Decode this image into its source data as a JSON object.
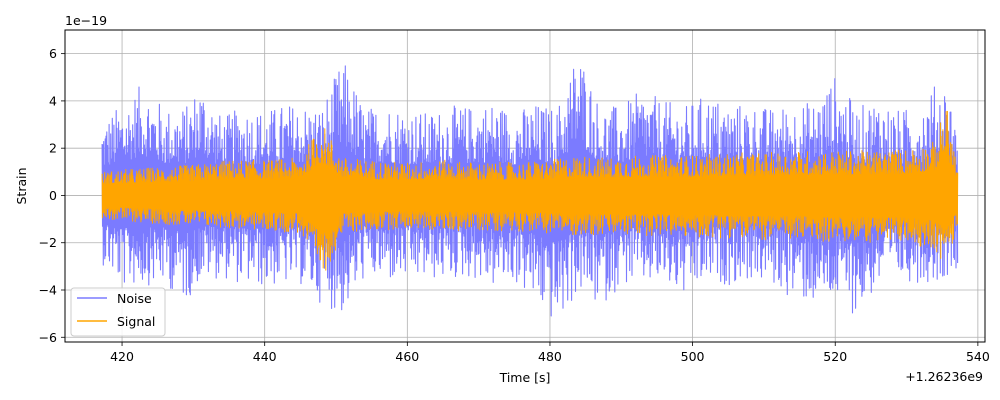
{
  "chart_data": {
    "type": "line",
    "xlabel": "Time [s]",
    "ylabel": "Strain",
    "x_offset_label": "+1.26236e9",
    "y_scale_label": "1e−19",
    "xlim": [
      412,
      541
    ],
    "ylim": [
      -6.2,
      7.0
    ],
    "x_range_data": [
      417.2,
      537.2
    ],
    "xticks": [
      420,
      440,
      460,
      480,
      500,
      520,
      540
    ],
    "xtick_labels": [
      "420",
      "440",
      "460",
      "480",
      "500",
      "520",
      "540"
    ],
    "yticks": [
      -6,
      -4,
      -2,
      0,
      2,
      4,
      6
    ],
    "ytick_labels": [
      "−6",
      "−4",
      "−2",
      "0",
      "2",
      "4",
      "6"
    ],
    "grid": true,
    "legend_position": "lower-left",
    "series": [
      {
        "name": "Noise",
        "color": "#7b7bff",
        "envelope": {
          "x": [
            417.2,
            420,
            423,
            426,
            429,
            431,
            434,
            437,
            440,
            443,
            445,
            448,
            451,
            454,
            457,
            460,
            463,
            466,
            469,
            472,
            475,
            478,
            481,
            484,
            487,
            490,
            493,
            496,
            499,
            502,
            505,
            508,
            511,
            514,
            517,
            520,
            523,
            526,
            529,
            532,
            535,
            537.2
          ],
          "upper": [
            3.2,
            3.9,
            4.8,
            3.7,
            3.8,
            4.9,
            3.3,
            3.8,
            3.6,
            3.9,
            3.9,
            3.8,
            5.8,
            3.7,
            3.9,
            3.7,
            3.5,
            3.8,
            3.8,
            4.0,
            3.6,
            3.9,
            3.7,
            6.4,
            3.8,
            3.8,
            4.5,
            4.0,
            3.8,
            4.3,
            3.9,
            3.9,
            3.7,
            3.9,
            4.0,
            5.1,
            3.7,
            4.2,
            3.6,
            3.9,
            5.1,
            3.4
          ],
          "lower": [
            -2.9,
            -3.9,
            -3.8,
            -3.8,
            -4.5,
            -3.6,
            -3.5,
            -3.8,
            -3.9,
            -3.8,
            -3.8,
            -4.6,
            -5.1,
            -3.5,
            -3.7,
            -3.6,
            -3.6,
            -3.6,
            -3.5,
            -3.9,
            -3.7,
            -4.6,
            -5.6,
            -4.1,
            -4.8,
            -3.8,
            -3.8,
            -3.8,
            -4.4,
            -3.7,
            -3.8,
            -3.6,
            -3.8,
            -4.4,
            -4.6,
            -4.5,
            -5.1,
            -3.9,
            -3.6,
            -3.7,
            -3.6,
            -3.0
          ]
        }
      },
      {
        "name": "Signal",
        "color": "#ffa500",
        "envelope": {
          "x": [
            417.2,
            420,
            425,
            430,
            435,
            440,
            445,
            448,
            451,
            455,
            460,
            465,
            470,
            475,
            480,
            484,
            488,
            492,
            496,
            500,
            505,
            510,
            515,
            520,
            525,
            530,
            534,
            535.5,
            537.2
          ],
          "upper": [
            1.0,
            1.1,
            1.2,
            1.3,
            1.5,
            1.5,
            1.6,
            3.1,
            1.6,
            1.5,
            1.4,
            1.5,
            1.4,
            1.4,
            1.5,
            1.7,
            1.6,
            1.7,
            1.7,
            1.7,
            1.8,
            1.8,
            1.9,
            1.9,
            1.9,
            2.0,
            2.3,
            4.0,
            1.2
          ],
          "lower": [
            -1.0,
            -1.1,
            -1.2,
            -1.3,
            -1.4,
            -1.5,
            -1.6,
            -3.6,
            -1.6,
            -1.5,
            -1.4,
            -1.5,
            -1.5,
            -1.5,
            -1.6,
            -1.7,
            -1.7,
            -1.7,
            -1.7,
            -1.8,
            -1.8,
            -1.9,
            -1.9,
            -2.0,
            -2.0,
            -2.0,
            -2.3,
            -3.2,
            -1.2
          ]
        }
      }
    ]
  }
}
